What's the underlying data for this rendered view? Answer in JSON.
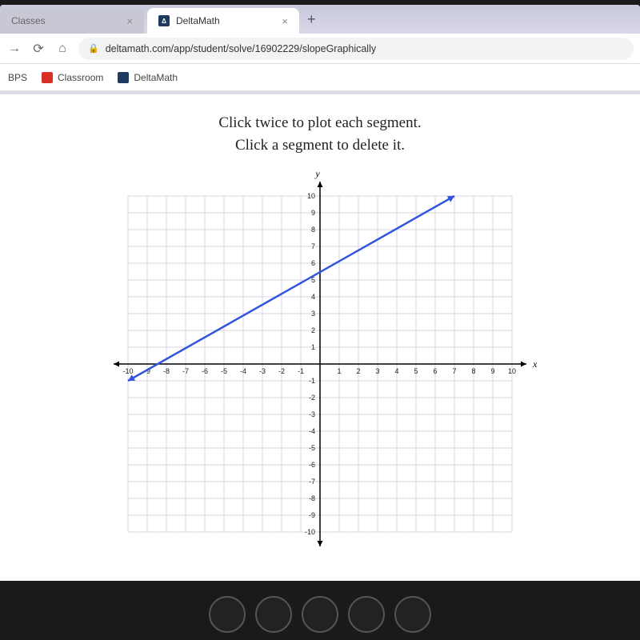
{
  "tabs": {
    "inactive_label": "Classes",
    "active_label": "DeltaMath"
  },
  "url": "deltamath.com/app/student/solve/16902229/slopeGraphically",
  "bookmarks": {
    "bps": "BPS",
    "classroom": "Classroom",
    "deltamath": "DeltaMath"
  },
  "instruction_line1": "Click twice to plot each segment.",
  "instruction_line2": "Click a segment to delete it.",
  "graph": {
    "type": "line",
    "xmin": -10,
    "xmax": 10,
    "ymin": -10,
    "ymax": 10,
    "xtick_step": 1,
    "ytick_step": 1,
    "xlabel": "x",
    "ylabel": "y",
    "background_color": "#ffffff",
    "grid_color": "#d4d4e0",
    "axis_color": "#000000",
    "axis_width": 1.5,
    "line_color": "#3355dd",
    "line_width": 2.5,
    "line_points": [
      [
        -10,
        -1
      ],
      [
        7,
        10
      ]
    ],
    "tick_font_size": 9,
    "axis_label_font_size": 12,
    "xticks": [
      -10,
      -9,
      -8,
      -7,
      -6,
      -5,
      -4,
      -3,
      -2,
      -1,
      1,
      2,
      3,
      4,
      5,
      6,
      7,
      8,
      9,
      10
    ],
    "yticks": [
      -10,
      -9,
      -8,
      -7,
      -6,
      -5,
      -4,
      -3,
      -2,
      -1,
      1,
      2,
      3,
      4,
      5,
      6,
      7,
      8,
      9,
      10
    ]
  },
  "colors": {
    "classroom_icon": "#d93025",
    "deltamath_icon": "#1e3a5f"
  }
}
